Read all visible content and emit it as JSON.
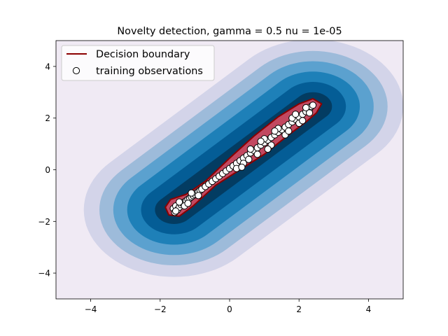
{
  "chart_data": {
    "type": "contour",
    "title": "Novelty detection, gamma = 0.5 nu = 1e-05",
    "xlabel": "",
    "ylabel": "",
    "xlim": [
      -5,
      5
    ],
    "ylim": [
      -5,
      5
    ],
    "xticks": [
      -4,
      -2,
      0,
      2,
      4
    ],
    "yticks": [
      -4,
      -2,
      0,
      2,
      4
    ],
    "xtick_labels": [
      "−4",
      "−2",
      "0",
      "2",
      "4"
    ],
    "ytick_labels": [
      "−4",
      "−2",
      "0",
      "2",
      "4"
    ],
    "grid": false,
    "background_color": "#f0eaf4",
    "decision_function_contours": {
      "segment_start": [
        -1.6,
        -1.55
      ],
      "segment_end": [
        2.4,
        2.45
      ],
      "half_width_levels": [
        2.6,
        2.15,
        1.75,
        1.35,
        0.95,
        0.55
      ],
      "colors": [
        "#d3d4e9",
        "#9dbbda",
        "#5ba1cf",
        "#1e80b8",
        "#045d96",
        "#033c62"
      ]
    },
    "decision_boundary": {
      "color": "#8b0000",
      "fill_color": "#c24860"
    },
    "training_observations": {
      "marker": "circle",
      "face_color": "#ffffff",
      "edge_color": "#000000",
      "x": [
        -1.62,
        -1.58,
        -1.55,
        -1.5,
        -1.45,
        -1.4,
        -1.35,
        -1.3,
        -1.25,
        -1.2,
        -1.15,
        -1.1,
        -1.05,
        -1.0,
        -0.95,
        -0.9,
        -0.85,
        -0.8,
        -0.7,
        -0.6,
        -0.5,
        -0.4,
        -0.3,
        -0.2,
        -0.1,
        0.0,
        0.1,
        0.2,
        0.3,
        0.4,
        0.5,
        0.6,
        0.7,
        0.8,
        0.9,
        1.0,
        1.1,
        1.2,
        1.3,
        1.4,
        1.5,
        1.6,
        1.7,
        1.8,
        1.9,
        2.0,
        2.1,
        2.2,
        2.3,
        2.35,
        2.4,
        -1.45,
        -1.3,
        -1.1,
        -0.9,
        0.2,
        0.4,
        0.6,
        0.8,
        1.0,
        1.2,
        1.4,
        1.6,
        1.8,
        2.0,
        2.2,
        2.3,
        -1.55,
        -1.2,
        0.9,
        1.1,
        1.3,
        1.7,
        1.9,
        2.1,
        0.35,
        0.55
      ],
      "y": [
        -1.5,
        -1.65,
        -1.4,
        -1.55,
        -1.45,
        -1.35,
        -1.3,
        -1.25,
        -1.2,
        -1.15,
        -1.1,
        -1.05,
        -1.0,
        -0.95,
        -0.9,
        -0.85,
        -0.8,
        -0.75,
        -0.65,
        -0.55,
        -0.45,
        -0.35,
        -0.25,
        -0.15,
        -0.05,
        0.05,
        0.15,
        0.25,
        0.35,
        0.45,
        0.55,
        0.65,
        0.75,
        0.85,
        0.95,
        1.05,
        1.15,
        1.25,
        1.35,
        1.45,
        1.55,
        1.65,
        1.75,
        1.85,
        1.95,
        2.05,
        2.15,
        2.25,
        2.35,
        2.45,
        2.5,
        -1.25,
        -1.4,
        -0.9,
        -1.0,
        0.05,
        0.25,
        0.8,
        0.6,
        1.2,
        0.95,
        1.6,
        1.35,
        2.0,
        1.8,
        2.4,
        2.2,
        -1.6,
        -1.3,
        1.1,
        0.8,
        1.5,
        1.5,
        2.15,
        1.9,
        0.1,
        0.4
      ]
    },
    "legend": {
      "placement": "upper-left",
      "entries": [
        "Decision boundary",
        "training observations"
      ]
    }
  }
}
